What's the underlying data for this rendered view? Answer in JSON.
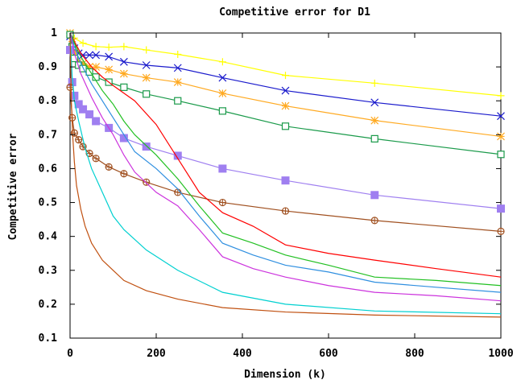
{
  "chart_data": {
    "type": "line",
    "title": "Competitive error for D1",
    "xlabel": "Dimension (k)",
    "ylabel": "Competitive error",
    "xlim": [
      0,
      1000
    ],
    "ylim": [
      0.1,
      1.0
    ],
    "xticks": [
      0,
      200,
      400,
      600,
      800,
      1000
    ],
    "yticks": [
      0.1,
      0.2,
      0.3,
      0.4,
      0.5,
      0.6,
      0.7,
      0.8,
      0.9,
      1
    ],
    "ytick_labels": [
      "0.1",
      "0.2",
      "0.3",
      "0.4",
      "0.5",
      "0.6",
      "0.7",
      "0.8",
      "0.9",
      "1"
    ],
    "grid": false,
    "legend": "none",
    "series": [
      {
        "color": "#ffff00",
        "marker": "plus",
        "x": [
          0,
          10,
          30,
          60,
          90,
          125,
          177,
          250,
          354,
          500,
          707,
          1000
        ],
        "y": [
          1.0,
          0.985,
          0.97,
          0.96,
          0.958,
          0.96,
          0.95,
          0.937,
          0.915,
          0.875,
          0.852,
          0.815
        ]
      },
      {
        "color": "#1a1acc",
        "marker": "x",
        "x": [
          0,
          5,
          10,
          20,
          30,
          45,
          60,
          90,
          125,
          177,
          250,
          354,
          500,
          707,
          1000
        ],
        "y": [
          0.99,
          0.975,
          0.955,
          0.94,
          0.935,
          0.935,
          0.935,
          0.93,
          0.915,
          0.905,
          0.897,
          0.868,
          0.83,
          0.795,
          0.755
        ]
      },
      {
        "color": "#ffaa22",
        "marker": "star",
        "x": [
          0,
          5,
          10,
          20,
          30,
          45,
          60,
          90,
          125,
          177,
          250,
          354,
          500,
          707,
          1000
        ],
        "y": [
          1.0,
          0.975,
          0.945,
          0.915,
          0.91,
          0.9,
          0.9,
          0.892,
          0.88,
          0.868,
          0.855,
          0.822,
          0.785,
          0.742,
          0.695
        ]
      },
      {
        "color": "#1a9a4a",
        "marker": "square-open",
        "x": [
          0,
          5,
          10,
          20,
          30,
          45,
          60,
          90,
          125,
          177,
          250,
          354,
          500,
          707,
          1000
        ],
        "y": [
          0.995,
          0.96,
          0.925,
          0.905,
          0.895,
          0.885,
          0.87,
          0.855,
          0.84,
          0.82,
          0.8,
          0.77,
          0.725,
          0.688,
          0.642
        ]
      },
      {
        "color": "#9f7ff0",
        "marker": "square-filled",
        "x": [
          0,
          5,
          10,
          20,
          30,
          45,
          60,
          90,
          125,
          177,
          250,
          354,
          500,
          707,
          1000
        ],
        "y": [
          0.95,
          0.855,
          0.815,
          0.79,
          0.775,
          0.76,
          0.74,
          0.72,
          0.69,
          0.665,
          0.638,
          0.6,
          0.565,
          0.522,
          0.482
        ]
      },
      {
        "color": "#a05020",
        "marker": "circle-plus",
        "x": [
          0,
          5,
          10,
          20,
          30,
          45,
          60,
          90,
          125,
          177,
          250,
          354,
          500,
          707,
          1000
        ],
        "y": [
          0.84,
          0.75,
          0.705,
          0.685,
          0.665,
          0.645,
          0.63,
          0.605,
          0.585,
          0.56,
          0.53,
          0.5,
          0.475,
          0.447,
          0.415
        ]
      },
      {
        "color": "#ff0000",
        "marker": "none",
        "x": [
          0,
          10,
          25,
          50,
          75,
          100,
          150,
          200,
          250,
          300,
          354,
          425,
          500,
          600,
          707,
          850,
          1000
        ],
        "y": [
          1.0,
          0.975,
          0.94,
          0.9,
          0.87,
          0.845,
          0.8,
          0.73,
          0.63,
          0.53,
          0.47,
          0.43,
          0.375,
          0.35,
          0.33,
          0.305,
          0.28
        ]
      },
      {
        "color": "#22c022",
        "marker": "none",
        "x": [
          0,
          10,
          25,
          50,
          75,
          100,
          125,
          150,
          200,
          250,
          300,
          354,
          425,
          500,
          600,
          707,
          850,
          1000
        ],
        "y": [
          1.0,
          0.97,
          0.93,
          0.88,
          0.83,
          0.79,
          0.74,
          0.7,
          0.64,
          0.57,
          0.49,
          0.41,
          0.38,
          0.345,
          0.315,
          0.28,
          0.27,
          0.255
        ]
      },
      {
        "color": "#2f8fe0",
        "marker": "none",
        "x": [
          0,
          10,
          25,
          50,
          75,
          100,
          125,
          150,
          200,
          250,
          300,
          354,
          425,
          500,
          600,
          707,
          850,
          1000
        ],
        "y": [
          1.0,
          0.96,
          0.91,
          0.85,
          0.8,
          0.75,
          0.7,
          0.65,
          0.6,
          0.54,
          0.46,
          0.38,
          0.345,
          0.315,
          0.295,
          0.265,
          0.25,
          0.235
        ]
      },
      {
        "color": "#cc33dd",
        "marker": "none",
        "x": [
          0,
          10,
          25,
          50,
          75,
          100,
          125,
          150,
          200,
          250,
          300,
          354,
          425,
          500,
          600,
          707,
          850,
          1000
        ],
        "y": [
          1.0,
          0.94,
          0.88,
          0.81,
          0.75,
          0.7,
          0.64,
          0.59,
          0.53,
          0.49,
          0.42,
          0.34,
          0.305,
          0.28,
          0.255,
          0.235,
          0.225,
          0.21
        ]
      },
      {
        "color": "#00d0d0",
        "marker": "none",
        "x": [
          0,
          5,
          10,
          20,
          35,
          50,
          75,
          100,
          125,
          177,
          250,
          354,
          500,
          707,
          1000
        ],
        "y": [
          1.0,
          0.87,
          0.8,
          0.74,
          0.66,
          0.6,
          0.53,
          0.46,
          0.42,
          0.36,
          0.3,
          0.235,
          0.2,
          0.18,
          0.172
        ]
      },
      {
        "color": "#c05010",
        "marker": "none",
        "x": [
          0,
          3,
          6,
          10,
          15,
          25,
          35,
          50,
          75,
          100,
          125,
          177,
          250,
          354,
          500,
          707,
          1000
        ],
        "y": [
          1.0,
          0.8,
          0.7,
          0.62,
          0.55,
          0.48,
          0.43,
          0.38,
          0.33,
          0.3,
          0.27,
          0.24,
          0.215,
          0.19,
          0.177,
          0.168,
          0.162
        ]
      }
    ]
  }
}
